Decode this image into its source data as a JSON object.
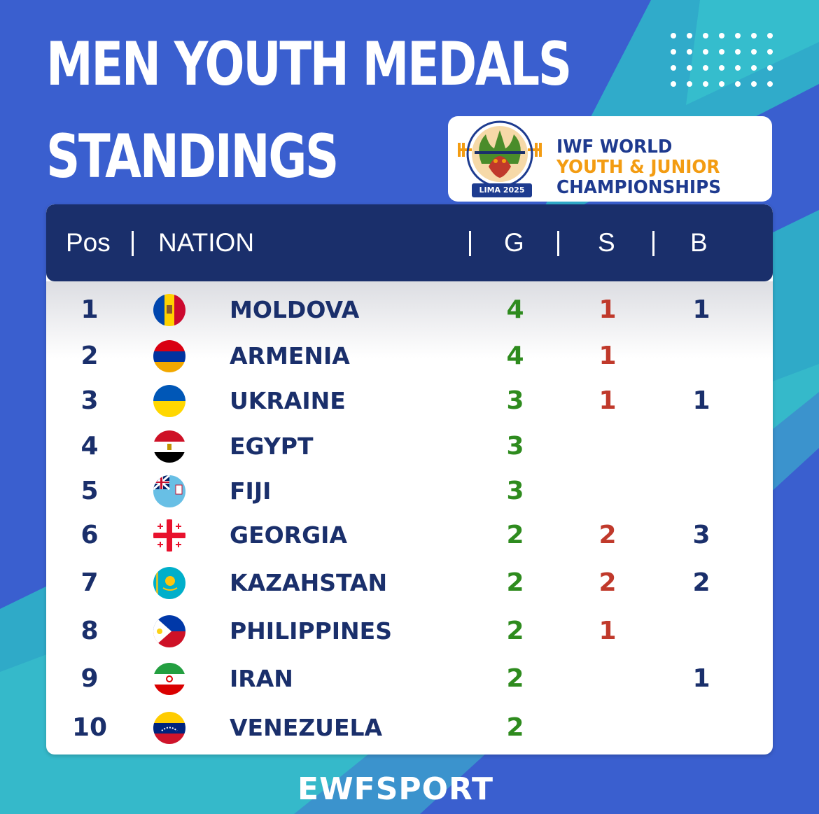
{
  "title": {
    "line1": "MEN YOUTH MEDALS",
    "line2": "STANDINGS"
  },
  "logo": {
    "line1": "IWF WORLD",
    "line2": "YOUTH & JUNIOR",
    "line3": "CHAMPIONSHIPS",
    "tag": "LIMA 2025",
    "icon": "weightlifting-dragon-emblem-icon"
  },
  "table": {
    "headers": {
      "pos": "Pos",
      "nation": "NATION",
      "gold": "G",
      "silver": "S",
      "bronze": "B"
    },
    "rows": [
      {
        "pos": "1",
        "flag": "moldova-flag-icon",
        "nation": "MOLDOVA",
        "g": "4",
        "s": "1",
        "b": "1"
      },
      {
        "pos": "2",
        "flag": "armenia-flag-icon",
        "nation": "ARMENIA",
        "g": "4",
        "s": "1",
        "b": ""
      },
      {
        "pos": "3",
        "flag": "ukraine-flag-icon",
        "nation": "UKRAINE",
        "g": "3",
        "s": "1",
        "b": "1"
      },
      {
        "pos": "4",
        "flag": "egypt-flag-icon",
        "nation": "EGYPT",
        "g": "3",
        "s": "",
        "b": ""
      },
      {
        "pos": "5",
        "flag": "fiji-flag-icon",
        "nation": "FIJI",
        "g": "3",
        "s": "",
        "b": ""
      },
      {
        "pos": "6",
        "flag": "georgia-flag-icon",
        "nation": "GEORGIA",
        "g": "2",
        "s": "2",
        "b": "3"
      },
      {
        "pos": "7",
        "flag": "kazakhstan-flag-icon",
        "nation": "KAZAHSTAN",
        "g": "2",
        "s": "2",
        "b": "2"
      },
      {
        "pos": "8",
        "flag": "philippines-flag-icon",
        "nation": "PHILIPPINES",
        "g": "2",
        "s": "1",
        "b": ""
      },
      {
        "pos": "9",
        "flag": "iran-flag-icon",
        "nation": "IRAN",
        "g": "2",
        "s": "",
        "b": "1"
      },
      {
        "pos": "10",
        "flag": "venezuela-flag-icon",
        "nation": "VENEZUELA",
        "g": "2",
        "s": "",
        "b": ""
      }
    ]
  },
  "footer": "EWFSPORT",
  "colors": {
    "background": "#3a5fcf",
    "teal_stripe": "#2fc0c8",
    "header": "#1a2f6b",
    "gold_text": "#2e8b1e",
    "silver_text": "#c0392b",
    "bronze_text": "#1a2f6b",
    "logo_orange": "#f39c12"
  }
}
